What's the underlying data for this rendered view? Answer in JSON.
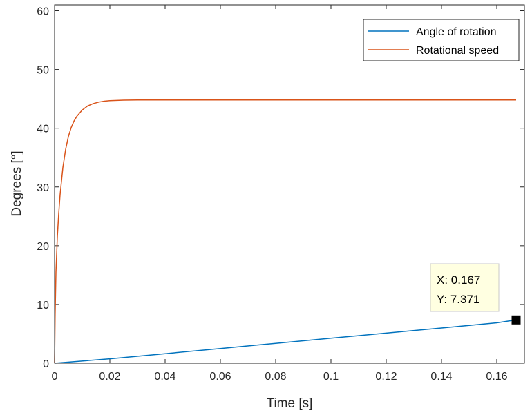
{
  "chart_data": {
    "type": "line",
    "title": "",
    "xlabel": "Time [s]",
    "ylabel": "Degrees [°]",
    "xlim": [
      0,
      0.17
    ],
    "ylim": [
      0,
      61
    ],
    "xticks": [
      0,
      0.02,
      0.04,
      0.06,
      0.08,
      0.1,
      0.12,
      0.14,
      0.16
    ],
    "xtick_labels": [
      "0",
      "0.02",
      "0.04",
      "0.06",
      "0.08",
      "0.1",
      "0.12",
      "0.14",
      "0.16"
    ],
    "yticks": [
      0,
      10,
      20,
      30,
      40,
      50,
      60
    ],
    "ytick_labels": [
      "0",
      "10",
      "20",
      "30",
      "40",
      "50",
      "60"
    ],
    "grid": false,
    "legend_position": "top-right",
    "series": [
      {
        "name": "Angle of rotation",
        "color": "#0072BD",
        "x": [
          0,
          0.02,
          0.04,
          0.06,
          0.08,
          0.1,
          0.12,
          0.14,
          0.16,
          0.167
        ],
        "y": [
          0,
          0.75,
          1.62,
          2.5,
          3.38,
          4.25,
          5.13,
          6.0,
          6.88,
          7.371
        ]
      },
      {
        "name": "Rotational speed",
        "color": "#D95319",
        "x": [
          0,
          0.0002,
          0.0005,
          0.001,
          0.0015,
          0.002,
          0.003,
          0.004,
          0.005,
          0.006,
          0.007,
          0.008,
          0.01,
          0.012,
          0.014,
          0.016,
          0.018,
          0.02,
          0.025,
          0.03,
          0.04,
          0.06,
          0.08,
          0.1,
          0.12,
          0.14,
          0.16,
          0.167
        ],
        "y": [
          0,
          8,
          15.5,
          21.5,
          25.5,
          28.7,
          33.3,
          36.4,
          38.6,
          40.1,
          41.2,
          42.0,
          43.1,
          43.8,
          44.2,
          44.45,
          44.6,
          44.7,
          44.78,
          44.8,
          44.8,
          44.8,
          44.8,
          44.8,
          44.8,
          44.8,
          44.8,
          44.8
        ]
      }
    ],
    "datatip": {
      "x": 0.167,
      "y": 7.371,
      "x_text": "X: 0.167",
      "y_text": "Y: 7.371"
    }
  }
}
